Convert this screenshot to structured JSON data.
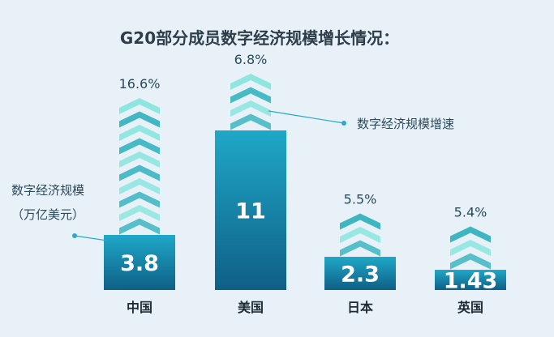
{
  "title": "G20部分成员数字经济规模增长情况：",
  "annotations": {
    "value_series_line1": "数字经济规模",
    "value_series_line2": "（万亿美元）",
    "growth_series": "数字经济规模增速"
  },
  "colors": {
    "bar_top": "#1fa8c8",
    "bar_bottom": "#0f5f86",
    "chevron_light": "#8fe6df",
    "chevron_dark": "#3db6c2",
    "leader_line": "#29a9cc"
  },
  "chart_data": {
    "type": "bar",
    "title": "G20部分成员数字经济规模增长情况：",
    "categories": [
      "中国",
      "美国",
      "日本",
      "英国"
    ],
    "series": [
      {
        "name": "数字经济规模（万亿美元）",
        "values": [
          3.8,
          11,
          2.3,
          1.43
        ]
      },
      {
        "name": "数字经济规模增速",
        "values": [
          16.6,
          6.8,
          5.5,
          5.4
        ],
        "unit": "%"
      }
    ],
    "value_labels": [
      "3.8",
      "11",
      "2.3",
      "1.43"
    ],
    "growth_labels": [
      "16.6%",
      "6.8%",
      "5.5%",
      "5.4%"
    ],
    "chevron_counts": [
      10,
      4,
      3,
      3
    ],
    "grid": false,
    "legend": "none"
  }
}
